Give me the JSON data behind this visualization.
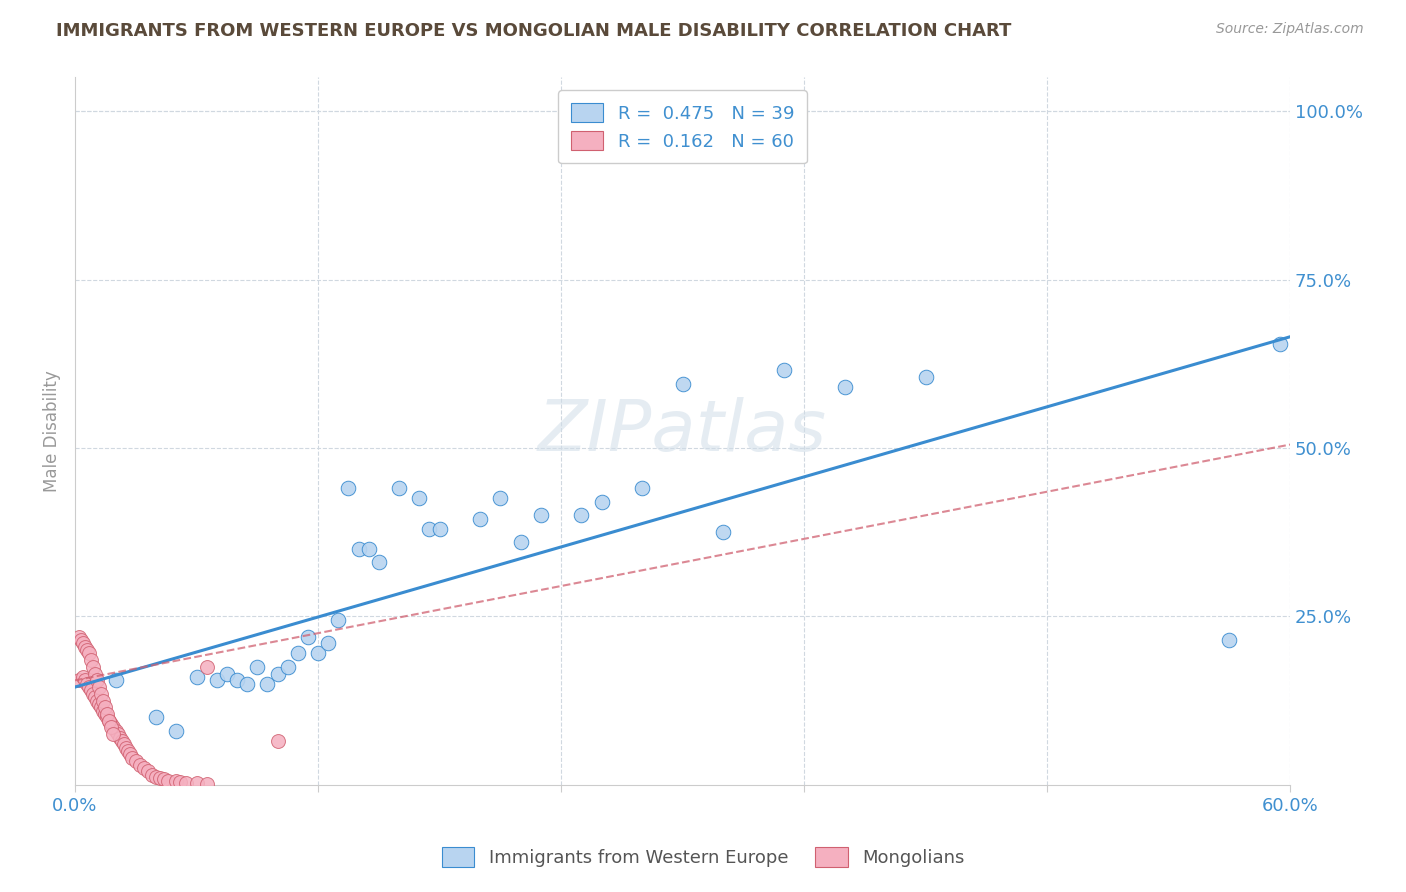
{
  "title": "IMMIGRANTS FROM WESTERN EUROPE VS MONGOLIAN MALE DISABILITY CORRELATION CHART",
  "source": "Source: ZipAtlas.com",
  "ylabel": "Male Disability",
  "right_yticks": [
    "100.0%",
    "75.0%",
    "50.0%",
    "25.0%"
  ],
  "right_ytick_vals": [
    1.0,
    0.75,
    0.5,
    0.25
  ],
  "legend_blue_r": "0.475",
  "legend_blue_n": "39",
  "legend_pink_r": "0.162",
  "legend_pink_n": "60",
  "blue_color": "#b8d4f0",
  "pink_color": "#f5b0c0",
  "trendline_blue_color": "#3a8cd0",
  "trendline_pink_color": "#d06070",
  "background_color": "#ffffff",
  "title_color": "#5a4a3a",
  "axis_label_color": "#4090d0",
  "grid_color": "#d0d8e0",
  "blue_scatter_x": [
    0.02,
    0.04,
    0.05,
    0.06,
    0.07,
    0.075,
    0.08,
    0.085,
    0.09,
    0.095,
    0.1,
    0.105,
    0.11,
    0.115,
    0.12,
    0.125,
    0.13,
    0.135,
    0.14,
    0.145,
    0.15,
    0.16,
    0.17,
    0.175,
    0.18,
    0.2,
    0.21,
    0.22,
    0.23,
    0.25,
    0.26,
    0.28,
    0.3,
    0.32,
    0.35,
    0.38,
    0.42,
    0.57,
    0.595
  ],
  "blue_scatter_y": [
    0.155,
    0.1,
    0.08,
    0.16,
    0.155,
    0.165,
    0.155,
    0.15,
    0.175,
    0.15,
    0.165,
    0.175,
    0.195,
    0.22,
    0.195,
    0.21,
    0.245,
    0.44,
    0.35,
    0.35,
    0.33,
    0.44,
    0.425,
    0.38,
    0.38,
    0.395,
    0.425,
    0.36,
    0.4,
    0.4,
    0.42,
    0.44,
    0.595,
    0.375,
    0.615,
    0.59,
    0.605,
    0.215,
    0.655
  ],
  "pink_scatter_x": [
    0.002,
    0.004,
    0.005,
    0.006,
    0.007,
    0.008,
    0.009,
    0.01,
    0.011,
    0.012,
    0.013,
    0.014,
    0.015,
    0.016,
    0.017,
    0.018,
    0.019,
    0.02,
    0.021,
    0.022,
    0.023,
    0.024,
    0.025,
    0.026,
    0.027,
    0.028,
    0.03,
    0.032,
    0.034,
    0.036,
    0.038,
    0.04,
    0.042,
    0.044,
    0.046,
    0.05,
    0.052,
    0.055,
    0.06,
    0.065,
    0.002,
    0.003,
    0.004,
    0.005,
    0.006,
    0.007,
    0.008,
    0.009,
    0.01,
    0.011,
    0.012,
    0.013,
    0.014,
    0.015,
    0.016,
    0.017,
    0.018,
    0.019,
    0.065,
    0.1
  ],
  "pink_scatter_y": [
    0.155,
    0.16,
    0.155,
    0.15,
    0.145,
    0.14,
    0.135,
    0.13,
    0.125,
    0.12,
    0.115,
    0.11,
    0.105,
    0.1,
    0.095,
    0.09,
    0.085,
    0.08,
    0.075,
    0.07,
    0.065,
    0.06,
    0.055,
    0.05,
    0.045,
    0.04,
    0.035,
    0.03,
    0.025,
    0.02,
    0.015,
    0.012,
    0.01,
    0.008,
    0.006,
    0.005,
    0.004,
    0.003,
    0.002,
    0.001,
    0.22,
    0.215,
    0.21,
    0.205,
    0.2,
    0.195,
    0.185,
    0.175,
    0.165,
    0.155,
    0.145,
    0.135,
    0.125,
    0.115,
    0.105,
    0.095,
    0.085,
    0.075,
    0.175,
    0.065
  ],
  "xlim": [
    0.0,
    0.6
  ],
  "ylim": [
    0.0,
    1.05
  ],
  "xticks": [
    0.0,
    0.12,
    0.24,
    0.36,
    0.48,
    0.6
  ],
  "xtick_labels": [
    "0.0%",
    "",
    "",
    "",
    "",
    "60.0%"
  ],
  "blue_trend_x": [
    0.0,
    0.6
  ],
  "blue_trend_y": [
    0.145,
    0.665
  ],
  "pink_trend_x": [
    0.0,
    0.6
  ],
  "pink_trend_y": [
    0.155,
    0.505
  ]
}
